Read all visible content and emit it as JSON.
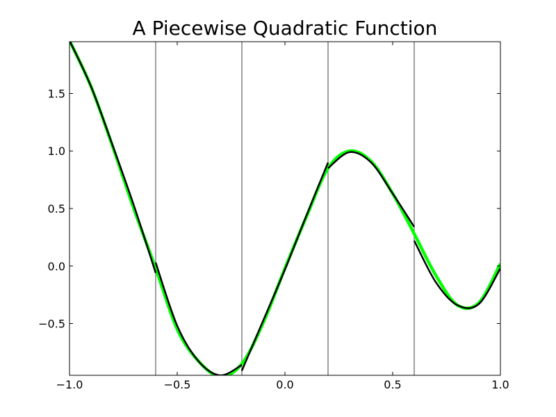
{
  "chart_data": {
    "type": "line",
    "title": "A Piecewise Quadratic Function",
    "xlabel": "",
    "ylabel": "",
    "xlim": [
      -1.0,
      1.0
    ],
    "ylim": [
      -0.95,
      1.95
    ],
    "x_ticks": [
      -1.0,
      -0.5,
      0.0,
      0.5,
      1.0
    ],
    "x_tick_labels": [
      "−1.0",
      "−0.5",
      "0.0",
      "0.5",
      "1.0"
    ],
    "y_ticks": [
      -0.5,
      0.0,
      0.5,
      1.0,
      1.5
    ],
    "y_tick_labels": [
      "−0.5",
      "0.0",
      "0.5",
      "1.0",
      "1.5"
    ],
    "grid": false,
    "legend": "none",
    "breakpoints": [
      -0.6,
      -0.2,
      0.2,
      0.6
    ],
    "series": [
      {
        "color": "#00ff00",
        "role": "underlying function (smooth)",
        "x": [
          -1.0,
          -0.9,
          -0.8,
          -0.7,
          -0.6,
          -0.5,
          -0.4,
          -0.3,
          -0.2,
          -0.1,
          0.0,
          0.1,
          0.2,
          0.3,
          0.4,
          0.5,
          0.6,
          0.7,
          0.8,
          0.9,
          1.0
        ],
        "y": [
          1.96,
          1.56,
          1.04,
          0.49,
          -0.02,
          -0.55,
          -0.83,
          -0.96,
          -0.85,
          -0.49,
          -0.02,
          0.43,
          0.85,
          1.0,
          0.91,
          0.63,
          0.28,
          -0.08,
          -0.34,
          -0.32,
          0.02
        ]
      },
      {
        "color": "#000000",
        "role": "piecewise quadratic approximation",
        "segments": [
          {
            "x": [
              -1.0,
              -0.9,
              -0.8,
              -0.7,
              -0.6
            ],
            "y": [
              1.96,
              1.56,
              1.05,
              0.52,
              -0.06
            ]
          },
          {
            "x": [
              -0.6,
              -0.5,
              -0.4,
              -0.3,
              -0.2
            ],
            "y": [
              0.03,
              -0.52,
              -0.83,
              -0.95,
              -0.86
            ]
          },
          {
            "x": [
              -0.2,
              -0.1,
              0.0,
              0.1,
              0.2
            ],
            "y": [
              -0.91,
              -0.47,
              -0.03,
              0.44,
              0.9
            ]
          },
          {
            "x": [
              0.2,
              0.3,
              0.4,
              0.5,
              0.6
            ],
            "y": [
              0.85,
              0.99,
              0.9,
              0.63,
              0.34
            ]
          },
          {
            "x": [
              0.6,
              0.7,
              0.8,
              0.9,
              1.0
            ],
            "y": [
              0.22,
              -0.14,
              -0.34,
              -0.33,
              -0.02
            ]
          }
        ]
      }
    ]
  }
}
